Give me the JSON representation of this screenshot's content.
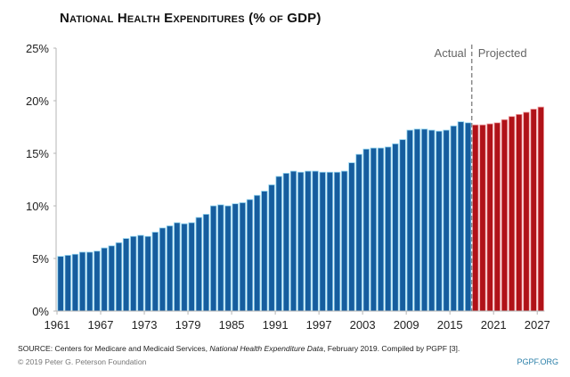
{
  "chart_data": {
    "type": "bar",
    "title": "National Health Expenditures (% of GDP)",
    "xlabel": "",
    "ylabel": "",
    "ylim": [
      0,
      25
    ],
    "yticks": [
      0,
      5,
      10,
      15,
      20,
      25
    ],
    "ytick_labels": [
      "0%",
      "5%",
      "10%",
      "15%",
      "20%",
      "25%"
    ],
    "xtick_labels": [
      "1961",
      "1967",
      "1973",
      "1979",
      "1985",
      "1991",
      "1997",
      "2003",
      "2009",
      "2015",
      "2021",
      "2027"
    ],
    "grid": false,
    "divider_label_left": "Actual",
    "divider_label_right": "Projected",
    "categories": [
      1961,
      1962,
      1963,
      1964,
      1965,
      1966,
      1967,
      1968,
      1969,
      1970,
      1971,
      1972,
      1973,
      1974,
      1975,
      1976,
      1977,
      1978,
      1979,
      1980,
      1981,
      1982,
      1983,
      1984,
      1985,
      1986,
      1987,
      1988,
      1989,
      1990,
      1991,
      1992,
      1993,
      1994,
      1995,
      1996,
      1997,
      1998,
      1999,
      2000,
      2001,
      2002,
      2003,
      2004,
      2005,
      2006,
      2007,
      2008,
      2009,
      2010,
      2011,
      2012,
      2013,
      2014,
      2015,
      2016,
      2017,
      2018,
      2019,
      2020,
      2021,
      2022,
      2023,
      2024,
      2025,
      2026,
      2027
    ],
    "series": [
      {
        "name": "Actual",
        "color": "#165d9e",
        "years": [
          1961,
          1962,
          1963,
          1964,
          1965,
          1966,
          1967,
          1968,
          1969,
          1970,
          1971,
          1972,
          1973,
          1974,
          1975,
          1976,
          1977,
          1978,
          1979,
          1980,
          1981,
          1982,
          1983,
          1984,
          1985,
          1986,
          1987,
          1988,
          1989,
          1990,
          1991,
          1992,
          1993,
          1994,
          1995,
          1996,
          1997,
          1998,
          1999,
          2000,
          2001,
          2002,
          2003,
          2004,
          2005,
          2006,
          2007,
          2008,
          2009,
          2010,
          2011,
          2012,
          2013,
          2014,
          2015,
          2016,
          2017
        ],
        "values": [
          5.2,
          5.3,
          5.4,
          5.6,
          5.6,
          5.7,
          6.0,
          6.2,
          6.5,
          6.9,
          7.1,
          7.2,
          7.1,
          7.5,
          7.9,
          8.1,
          8.4,
          8.3,
          8.4,
          8.9,
          9.2,
          10.0,
          10.1,
          10.0,
          10.2,
          10.3,
          10.6,
          11.0,
          11.4,
          12.0,
          12.8,
          13.1,
          13.3,
          13.2,
          13.3,
          13.3,
          13.2,
          13.2,
          13.2,
          13.3,
          14.1,
          14.9,
          15.4,
          15.5,
          15.5,
          15.6,
          15.9,
          16.3,
          17.2,
          17.3,
          17.3,
          17.2,
          17.1,
          17.2,
          17.6,
          18.0,
          17.9
        ]
      },
      {
        "name": "Projected",
        "color": "#b01218",
        "years": [
          2018,
          2019,
          2020,
          2021,
          2022,
          2023,
          2024,
          2025,
          2026,
          2027
        ],
        "values": [
          17.7,
          17.7,
          17.8,
          17.9,
          18.2,
          18.5,
          18.7,
          18.9,
          19.2,
          19.4
        ]
      }
    ]
  },
  "footer": {
    "source_prefix": "SOURCE: Centers for Medicare and Medicaid Services, ",
    "source_italic": "National Health Expenditure Data",
    "source_suffix": ", February 2019. Compiled by PGPF [3].",
    "copyright": "© 2019 Peter G. Peterson Foundation",
    "site": "PGPF.ORG"
  }
}
